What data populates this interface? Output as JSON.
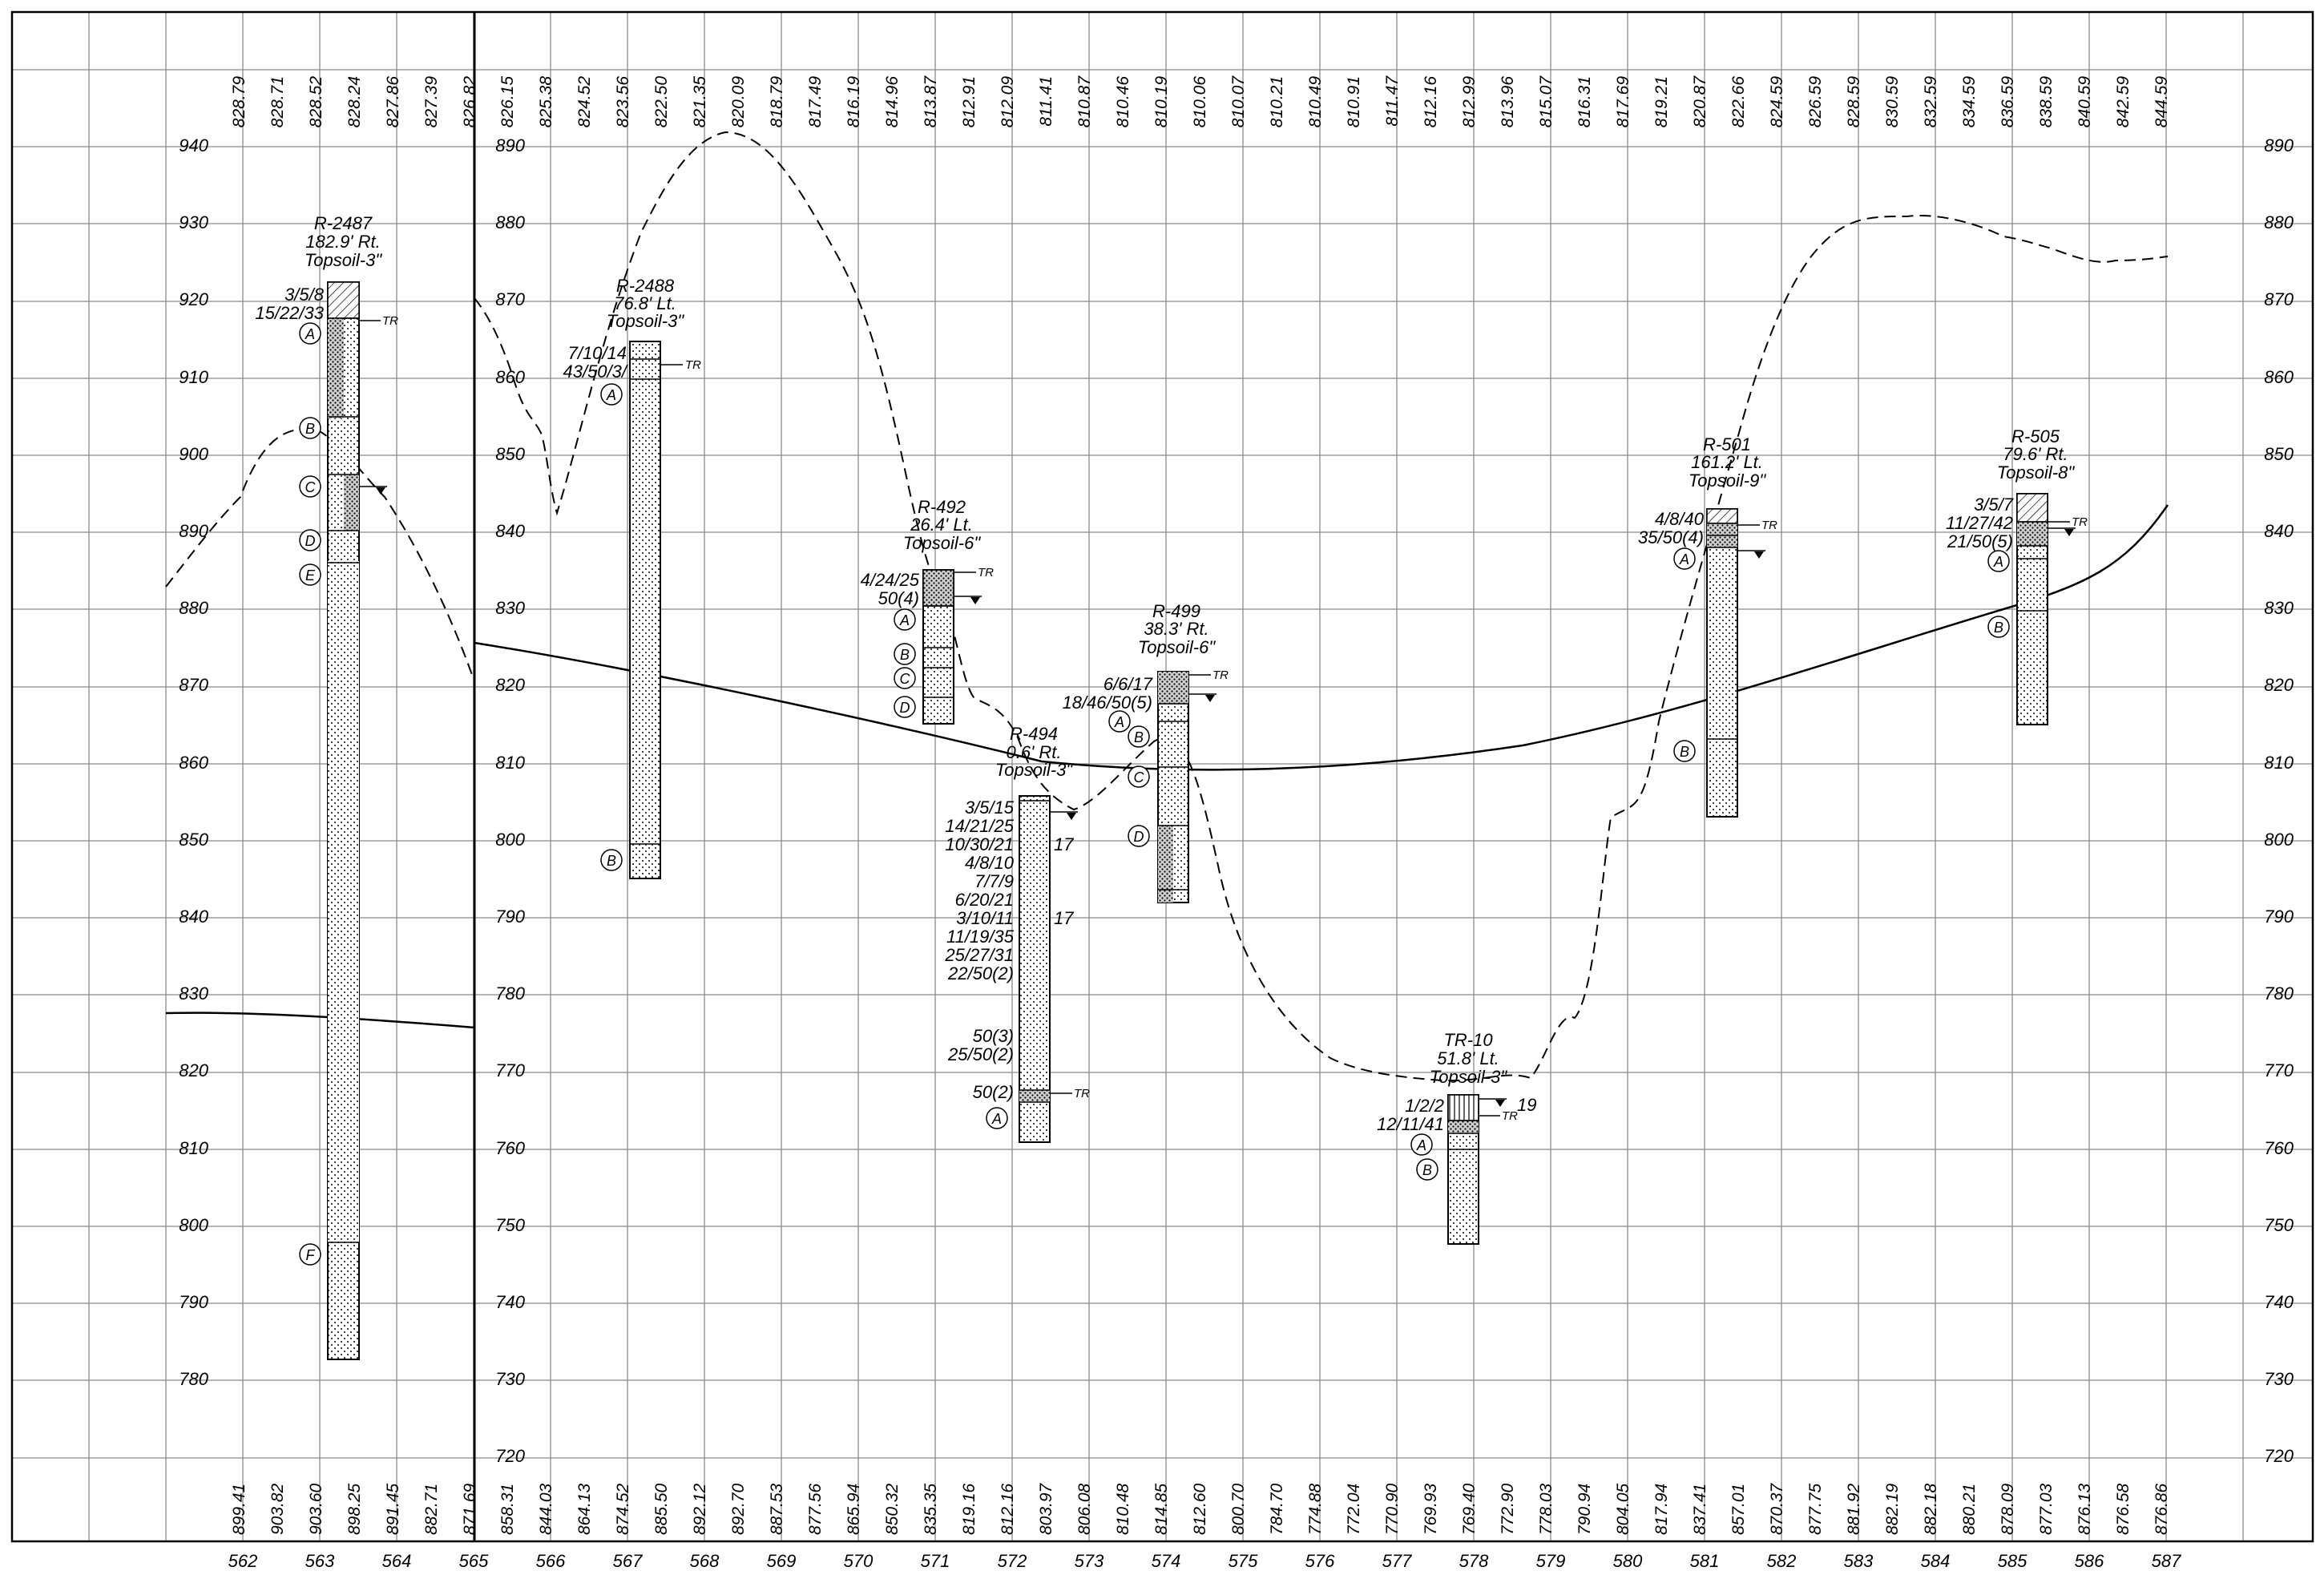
{
  "sheet_title": "",
  "sections": [
    {
      "id": "left",
      "elev_labels_left": [
        "940",
        "930",
        "920",
        "910",
        "900",
        "890",
        "880",
        "870",
        "860",
        "850",
        "840",
        "830",
        "820",
        "810",
        "800",
        "790",
        "780"
      ],
      "elev_labels_right": [
        "890",
        "880",
        "870",
        "860",
        "850",
        "840",
        "830",
        "820",
        "810",
        "800",
        "790",
        "780",
        "770",
        "760",
        "750",
        "740",
        "730",
        "720"
      ],
      "top_values": [
        "828.79",
        "828.71",
        "828.52",
        "828.24",
        "827.86",
        "827.39",
        "826.82"
      ],
      "bottom_values": [
        "899.41",
        "903.82",
        "903.60",
        "898.25",
        "891.45",
        "882.71",
        "871.69"
      ]
    },
    {
      "id": "right",
      "elev_labels_left": [
        "890",
        "880",
        "870",
        "860",
        "850",
        "840",
        "830",
        "820",
        "810",
        "800",
        "790",
        "780",
        "770",
        "760",
        "750",
        "740",
        "730",
        "720"
      ],
      "elev_labels_right": [
        "890",
        "880",
        "870",
        "860",
        "850",
        "840",
        "830",
        "820",
        "810",
        "800",
        "790",
        "780",
        "770",
        "760",
        "750",
        "740",
        "730",
        "720"
      ],
      "top_values": [
        "826.15",
        "825.38",
        "824.52",
        "823.56",
        "822.50",
        "821.35",
        "820.09",
        "818.79",
        "817.49",
        "816.19",
        "814.96",
        "813.87",
        "812.91",
        "812.09",
        "811.41",
        "810.87",
        "810.46",
        "810.19",
        "810.06",
        "810.07",
        "810.21",
        "810.49",
        "810.91",
        "811.47",
        "812.16",
        "812.99",
        "813.96",
        "815.07",
        "816.31",
        "817.69",
        "819.21",
        "820.87",
        "822.66",
        "824.59",
        "826.59",
        "828.59",
        "830.59",
        "832.59",
        "834.59",
        "836.59",
        "838.59",
        "840.59",
        "842.59",
        "844.59"
      ],
      "bottom_values": [
        "858.31",
        "844.03",
        "864.13",
        "874.52",
        "885.50",
        "892.12",
        "892.70",
        "887.53",
        "877.56",
        "865.94",
        "850.32",
        "835.35",
        "819.16",
        "812.16",
        "803.97",
        "806.08",
        "810.48",
        "814.85",
        "812.60",
        "800.70",
        "784.70",
        "774.88",
        "772.04",
        "770.90",
        "769.93",
        "769.40",
        "772.90",
        "778.03",
        "790.94",
        "804.05",
        "817.94",
        "837.41",
        "857.01",
        "870.37",
        "877.75",
        "881.92",
        "882.19",
        "882.18",
        "880.21",
        "878.09",
        "877.03",
        "876.13",
        "876.58",
        "876.86"
      ]
    }
  ],
  "stations": [
    "562",
    "563",
    "564",
    "565",
    "566",
    "567",
    "568",
    "569",
    "570",
    "571",
    "572",
    "573",
    "574",
    "575",
    "576",
    "577",
    "578",
    "579",
    "580",
    "581",
    "582",
    "583",
    "584",
    "585",
    "586",
    "587"
  ],
  "borings": [
    {
      "id": "R-2487",
      "title": "R-2487",
      "offset": "182.9' Rt.",
      "topsoil": "Topsoil-3\"",
      "blows": [
        "3/5/8",
        "15/22/33"
      ],
      "tr": "TR",
      "layers": [
        "A",
        "B",
        "C",
        "D",
        "E",
        "F"
      ]
    },
    {
      "id": "R-2488",
      "title": "R-2488",
      "offset": "76.8' Lt.",
      "topsoil": "Topsoil-3\"",
      "blows": [
        "7/10/14",
        "43/50/3/"
      ],
      "tr": "TR",
      "layers": [
        "A",
        "B"
      ]
    },
    {
      "id": "R-492",
      "title": "R-492",
      "offset": "26.4' Lt.",
      "topsoil": "Topsoil-6\"",
      "blows": [
        "4/24/25",
        "50(4)"
      ],
      "tr": "TR",
      "layers": [
        "A",
        "B",
        "C",
        "D"
      ]
    },
    {
      "id": "R-494",
      "title": "R-494",
      "offset": "0.6' Rt.",
      "topsoil": "Topsoil-3\"",
      "blows": [
        "3/5/15",
        "14/21/25",
        "10/30/21",
        "4/8/10",
        "7/7/9",
        "6/20/21",
        "3/10/11",
        "11/19/35",
        "25/27/31",
        "22/50(2)",
        "50(3)",
        "25/50(2)",
        "50(2)"
      ],
      "side_values": [
        "17",
        "17"
      ],
      "tr": "TR",
      "layers": [
        "A"
      ]
    },
    {
      "id": "R-499",
      "title": "R-499",
      "offset": "38.3' Rt.",
      "topsoil": "Topsoil-6\"",
      "blows": [
        "6/6/17",
        "18/46/50(5)"
      ],
      "tr": "TR",
      "layers": [
        "A",
        "B",
        "C",
        "D"
      ]
    },
    {
      "id": "TR-10",
      "title": "TR-10",
      "offset": "51.8' Lt.",
      "topsoil": "Topsoil-3\"",
      "blows": [
        "1/2/2",
        "12/11/41"
      ],
      "side_values": [
        "19"
      ],
      "tr": "TR",
      "layers": [
        "A",
        "B"
      ]
    },
    {
      "id": "R-501",
      "title": "R-501",
      "offset": "161.2' Lt.",
      "topsoil": "Topsoil-9\"",
      "blows": [
        "4/8/40",
        "35/50(4)"
      ],
      "tr": "TR",
      "layers": [
        "A",
        "B"
      ]
    },
    {
      "id": "R-505",
      "title": "R-505",
      "offset": "79.6' Rt.",
      "topsoil": "Topsoil-8\"",
      "blows": [
        "3/5/7",
        "11/27/42",
        "21/50(5)"
      ],
      "tr": "TR",
      "layers": [
        "A",
        "B"
      ]
    }
  ],
  "colors": {
    "line": "#000000",
    "grid": "#8a8a8a",
    "background": "#ffffff"
  }
}
